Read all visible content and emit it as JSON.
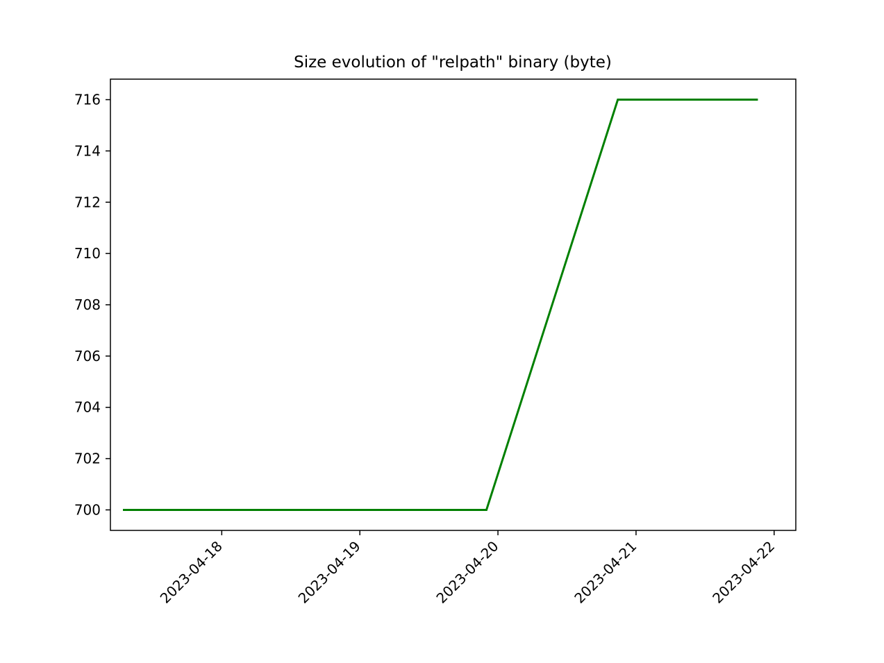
{
  "chart_data": {
    "type": "line",
    "title": "Size evolution of \"relpath\" binary (byte)",
    "xlabel": "",
    "ylabel": "",
    "x_tick_labels": [
      "2023-04-18",
      "2023-04-19",
      "2023-04-20",
      "2023-04-21",
      "2023-04-22"
    ],
    "y_tick_labels": [
      "700",
      "702",
      "704",
      "706",
      "708",
      "710",
      "712",
      "714",
      "716"
    ],
    "xlim": [
      "2023-04-17 04:39",
      "2023-04-22 03:46"
    ],
    "ylim": [
      699.2,
      716.8
    ],
    "grid": false,
    "legend": null,
    "series": [
      {
        "color": "#008000",
        "points": [
          {
            "x": "2023-04-17 07:00",
            "y": 700
          },
          {
            "x": "2023-04-19 22:00",
            "y": 700
          },
          {
            "x": "2023-04-20 20:50",
            "y": 716
          },
          {
            "x": "2023-04-21 21:00",
            "y": 716
          }
        ]
      }
    ]
  }
}
